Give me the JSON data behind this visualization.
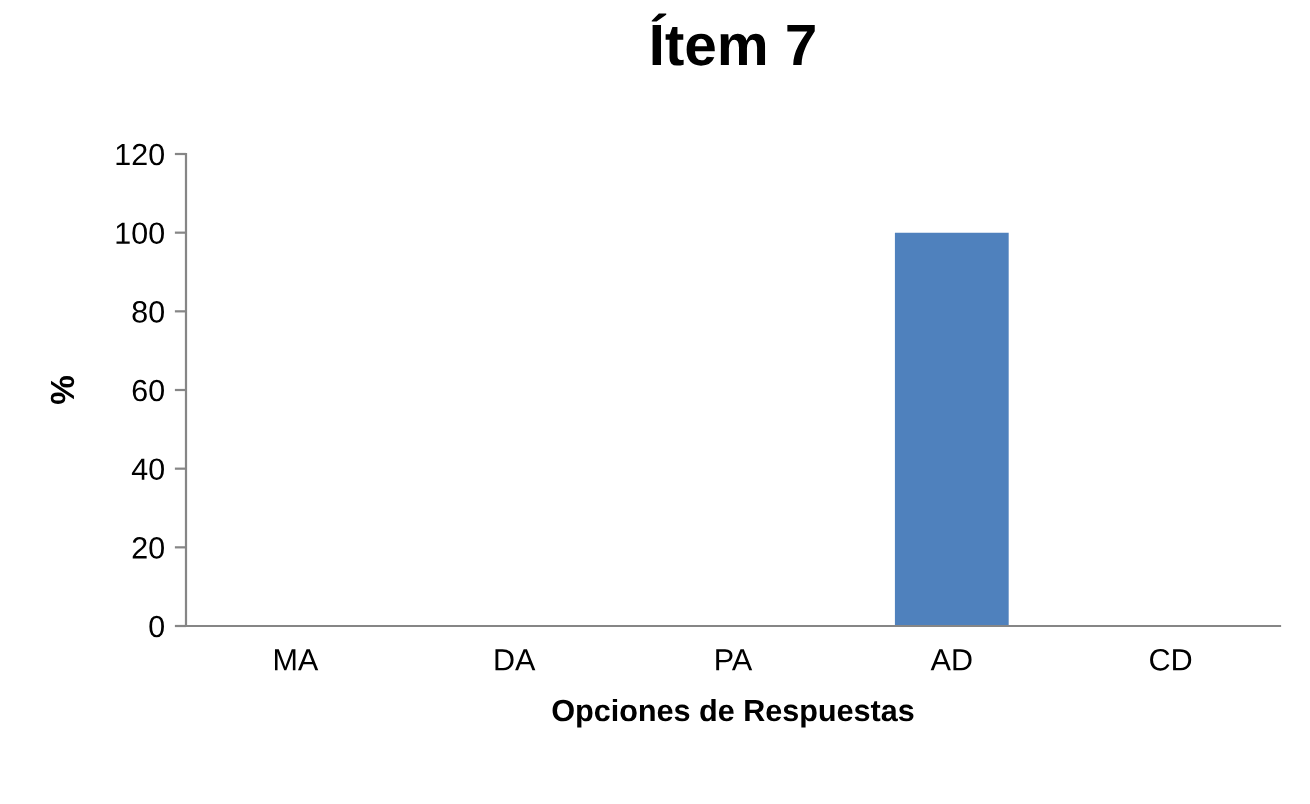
{
  "chart_data": {
    "type": "bar",
    "title": "Ítem 7",
    "xlabel": "Opciones de Respuestas",
    "ylabel": "%",
    "categories": [
      "MA",
      "DA",
      "PA",
      "AD",
      "CD"
    ],
    "values": [
      0,
      0,
      0,
      100,
      0
    ],
    "color": "#4f81bd",
    "ylim": [
      0,
      120
    ],
    "yticks": [
      0,
      20,
      40,
      60,
      80,
      100,
      120
    ],
    "grid": false,
    "legend": false
  }
}
